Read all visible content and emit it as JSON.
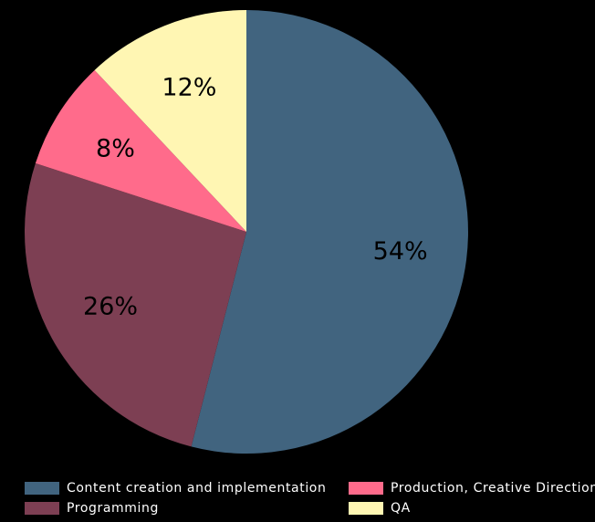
{
  "chart_data": {
    "type": "pie",
    "categories": [
      "Content creation and implementation",
      "Programming",
      "Production, Creative Direction",
      "QA"
    ],
    "values": [
      54,
      26,
      8,
      12
    ],
    "value_labels": [
      "54%",
      "26%",
      "8%",
      "12%"
    ],
    "colors": [
      "#41647f",
      "#7d3f53",
      "#ff6b8b",
      "#fff6b3"
    ],
    "start_angle_deg": 0,
    "direction": "clockwise",
    "legend_position": "bottom",
    "title": ""
  }
}
